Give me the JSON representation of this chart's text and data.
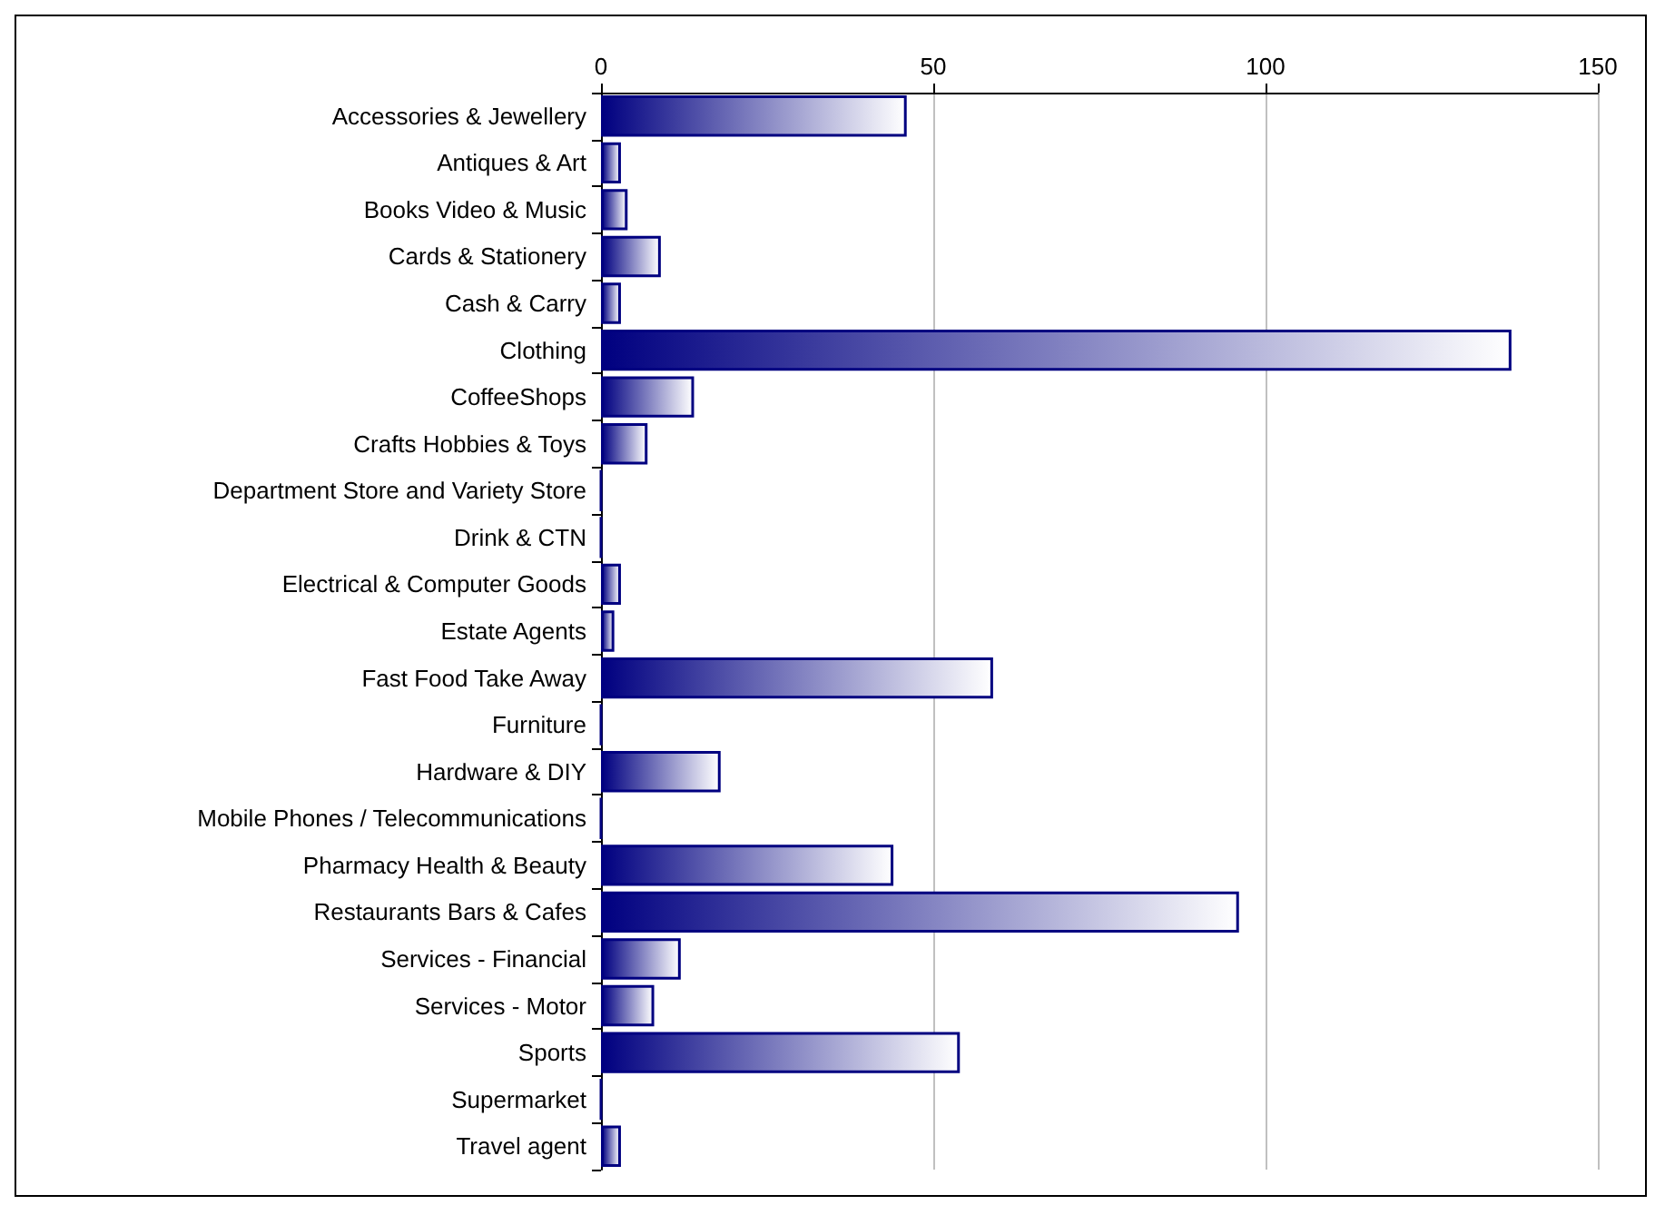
{
  "chart_data": {
    "type": "bar",
    "orientation": "horizontal",
    "categories": [
      "Accessories & Jewellery",
      "Antiques & Art",
      "Books Video & Music",
      "Cards & Stationery",
      "Cash & Carry",
      "Clothing",
      "CoffeeShops",
      "Crafts Hobbies & Toys",
      "Department Store and Variety Store",
      "Drink & CTN",
      "Electrical & Computer Goods",
      "Estate Agents",
      "Fast Food Take Away",
      "Furniture",
      "Hardware & DIY",
      "Mobile Phones / Telecommunications",
      "Pharmacy Health & Beauty",
      "Restaurants Bars & Cafes",
      "Services - Financial",
      "Services - Motor",
      "Sports",
      "Supermarket",
      "Travel agent"
    ],
    "values": [
      46,
      3,
      4,
      9,
      3,
      137,
      14,
      7,
      0,
      0,
      3,
      2,
      59,
      0,
      18,
      0,
      44,
      96,
      12,
      8,
      54,
      0,
      3
    ],
    "color": "#000080",
    "xlim": [
      0,
      150
    ],
    "xticks": [
      0,
      50,
      100,
      150
    ],
    "grid": "x"
  }
}
